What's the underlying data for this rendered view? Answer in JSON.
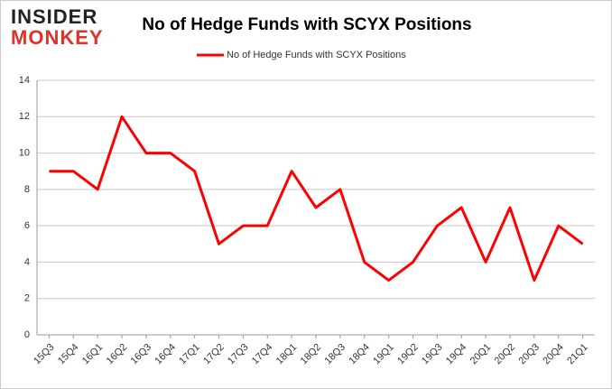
{
  "logo": {
    "line1": "INSIDER",
    "line2": "MONKEY"
  },
  "chart_data": {
    "type": "line",
    "title": "No of Hedge Funds with SCYX Positions",
    "categories": [
      "15Q3",
      "15Q4",
      "16Q1",
      "16Q2",
      "16Q3",
      "16Q4",
      "17Q1",
      "17Q2",
      "17Q3",
      "17Q4",
      "18Q1",
      "18Q2",
      "18Q3",
      "18Q4",
      "19Q1",
      "19Q2",
      "19Q3",
      "19Q4",
      "20Q1",
      "20Q2",
      "20Q3",
      "20Q4",
      "21Q1"
    ],
    "series": [
      {
        "name": "No of Hedge Funds with SCYX Positions",
        "color": "#ff0000",
        "values": [
          9,
          9,
          8,
          12,
          10,
          10,
          9,
          5,
          6,
          6,
          9,
          7,
          8,
          4,
          3,
          4,
          6,
          7,
          4,
          7,
          3,
          6,
          5
        ]
      }
    ],
    "ylim": [
      0,
      14
    ],
    "yticks": [
      0,
      2,
      4,
      6,
      8,
      10,
      12,
      14
    ],
    "grid": true
  }
}
